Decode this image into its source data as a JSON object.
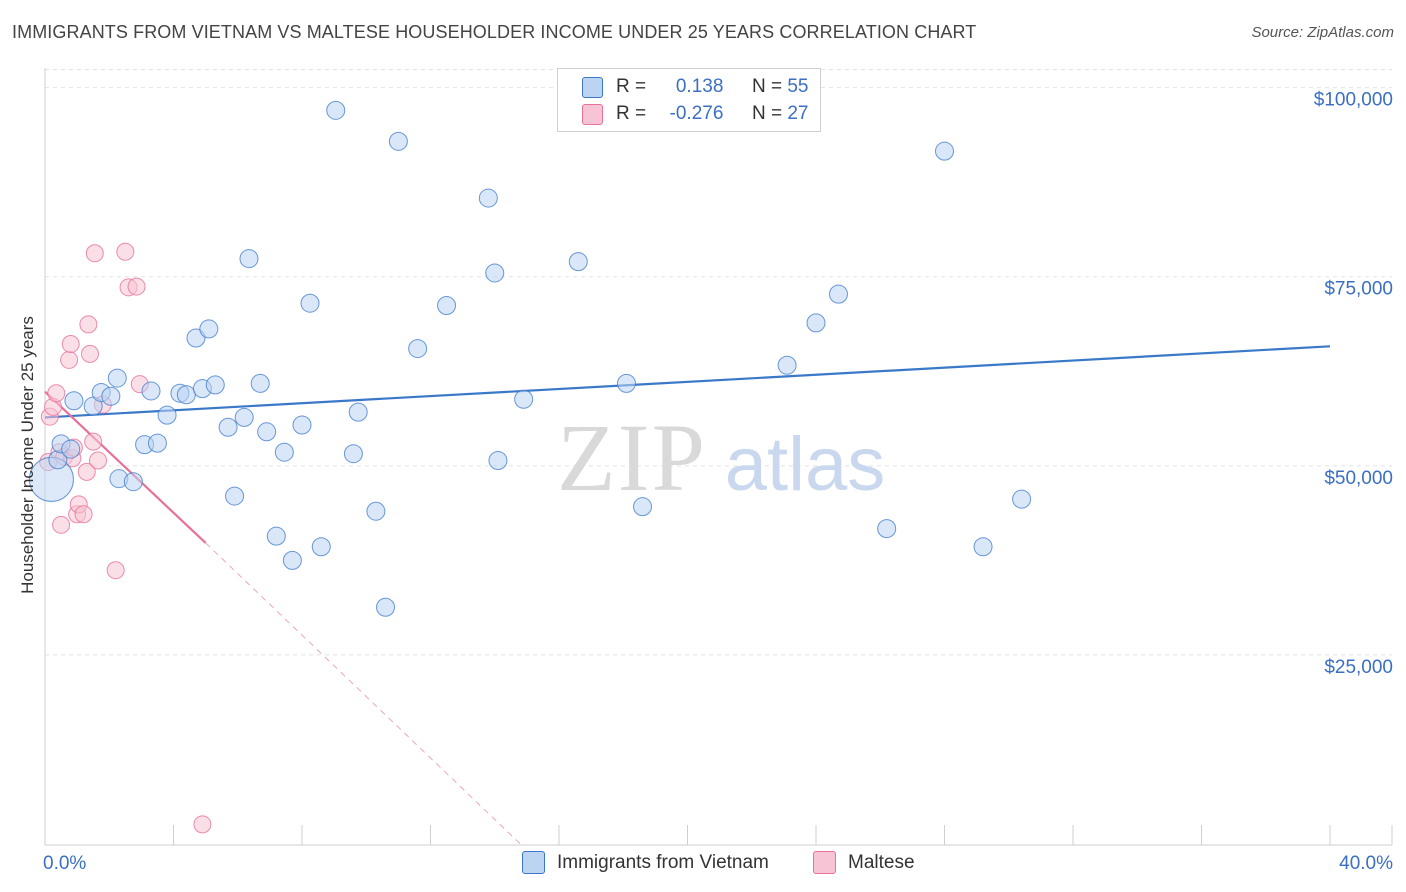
{
  "title": "IMMIGRANTS FROM VIETNAM VS MALTESE HOUSEHOLDER INCOME UNDER 25 YEARS CORRELATION CHART",
  "source": "Source: ZipAtlas.com",
  "watermark": {
    "zip": "ZIP",
    "atlas": "atlas"
  },
  "colors": {
    "blue": "#3a78c9",
    "blue_fill": "#bcd3f2",
    "pink": "#e8709a",
    "pink_fill": "#f6c4d4",
    "axis_text": "#3a6fc4"
  },
  "legend_top": {
    "rows": [
      {
        "r_label": "R =",
        "r_value": "0.138",
        "n_label": "N =",
        "n_value": "55"
      },
      {
        "r_label": "R =",
        "r_value": "-0.276",
        "n_label": "N =",
        "n_value": "27"
      }
    ]
  },
  "legend_bottom": {
    "series1": "Immigrants from Vietnam",
    "series2": "Maltese"
  },
  "chart_data": {
    "type": "scatter",
    "title": "IMMIGRANTS FROM VIETNAM VS MALTESE HOUSEHOLDER INCOME UNDER 25 YEARS CORRELATION CHART",
    "xlabel": "",
    "ylabel": "Householder Income Under 25 years",
    "xlim": [
      0,
      40
    ],
    "ylim": [
      0,
      105000
    ],
    "x_tick_labels": [
      "0.0%",
      "40.0%"
    ],
    "y_ticks": [
      {
        "value": 25000,
        "label": "$25,000"
      },
      {
        "value": 50000,
        "label": "$50,000"
      },
      {
        "value": 75000,
        "label": "$75,000"
      },
      {
        "value": 100000,
        "label": "$100,000"
      }
    ],
    "series": [
      {
        "name": "Immigrants from Vietnam",
        "r": 0.138,
        "n": 55,
        "trend": {
          "x0": 0,
          "y0": 56400,
          "x1": 40,
          "y1": 65800
        },
        "points": [
          [
            0.2,
            48200
          ],
          [
            0.4,
            50800
          ],
          [
            0.5,
            52900
          ],
          [
            0.8,
            52200
          ],
          [
            0.9,
            58600
          ],
          [
            1.5,
            57900
          ],
          [
            1.75,
            59700
          ],
          [
            2.05,
            59200
          ],
          [
            2.25,
            61600
          ],
          [
            2.3,
            48300
          ],
          [
            2.75,
            47900
          ],
          [
            3.1,
            52800
          ],
          [
            3.3,
            59900
          ],
          [
            3.5,
            53000
          ],
          [
            3.8,
            56700
          ],
          [
            4.2,
            59600
          ],
          [
            4.4,
            59400
          ],
          [
            4.7,
            66900
          ],
          [
            4.9,
            60200
          ],
          [
            5.1,
            68100
          ],
          [
            5.3,
            60700
          ],
          [
            5.7,
            55100
          ],
          [
            5.9,
            46000
          ],
          [
            6.2,
            56400
          ],
          [
            6.35,
            77400
          ],
          [
            6.7,
            60900
          ],
          [
            6.9,
            54500
          ],
          [
            7.2,
            40700
          ],
          [
            7.45,
            51800
          ],
          [
            7.7,
            37500
          ],
          [
            8.0,
            55400
          ],
          [
            8.25,
            71500
          ],
          [
            8.6,
            39300
          ],
          [
            9.05,
            97000
          ],
          [
            9.6,
            51600
          ],
          [
            9.75,
            57100
          ],
          [
            10.3,
            44000
          ],
          [
            10.6,
            31300
          ],
          [
            11.0,
            92900
          ],
          [
            11.6,
            65500
          ],
          [
            12.5,
            71200
          ],
          [
            13.8,
            85400
          ],
          [
            14.0,
            75500
          ],
          [
            14.1,
            50700
          ],
          [
            14.9,
            58800
          ],
          [
            16.6,
            77000
          ],
          [
            18.1,
            60900
          ],
          [
            18.6,
            44600
          ],
          [
            23.1,
            63300
          ],
          [
            24.0,
            68900
          ],
          [
            24.7,
            72700
          ],
          [
            26.2,
            41700
          ],
          [
            28.0,
            91600
          ],
          [
            29.2,
            39300
          ],
          [
            30.4,
            45600
          ]
        ]
      },
      {
        "name": "Maltese",
        "r": -0.276,
        "n": 27,
        "trend": {
          "x0": 0,
          "y0": 59800,
          "x1": 5.0,
          "y1": 39800
        },
        "trend_dashed": {
          "x0": 5.0,
          "y0": 39800,
          "x1": 14.8,
          "y1": 0
        },
        "points": [
          [
            0.1,
            50500
          ],
          [
            0.15,
            56500
          ],
          [
            0.25,
            57800
          ],
          [
            0.35,
            59600
          ],
          [
            0.45,
            51800
          ],
          [
            0.5,
            42200
          ],
          [
            0.6,
            51200
          ],
          [
            0.75,
            64000
          ],
          [
            0.8,
            66100
          ],
          [
            0.85,
            51000
          ],
          [
            0.9,
            52400
          ],
          [
            1.0,
            43600
          ],
          [
            1.05,
            44900
          ],
          [
            1.2,
            43600
          ],
          [
            1.3,
            49200
          ],
          [
            1.35,
            68700
          ],
          [
            1.4,
            64800
          ],
          [
            1.5,
            53200
          ],
          [
            1.55,
            78100
          ],
          [
            1.65,
            50700
          ],
          [
            2.2,
            36200
          ],
          [
            2.5,
            78300
          ],
          [
            2.6,
            73600
          ],
          [
            2.85,
            73700
          ],
          [
            2.95,
            60800
          ],
          [
            1.8,
            58100
          ],
          [
            4.9,
            2600
          ]
        ]
      }
    ]
  }
}
